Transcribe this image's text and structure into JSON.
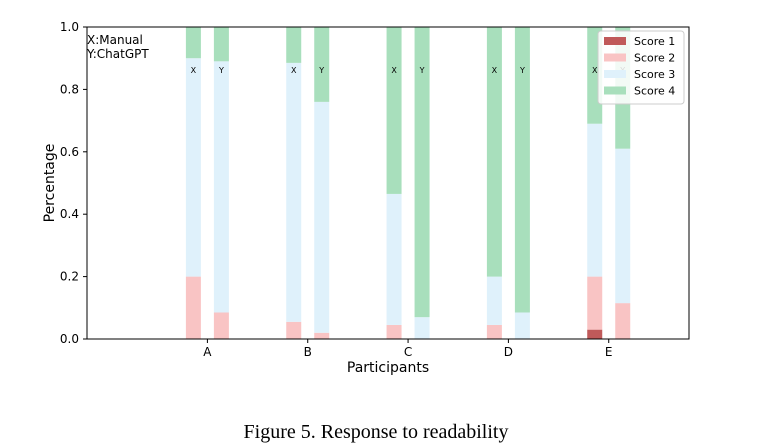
{
  "caption": "Figure 5.  Response to readability",
  "chart_data": {
    "type": "bar",
    "stacked": true,
    "xlabel": "Participants",
    "ylabel": "Percentage",
    "ylim": [
      0,
      1.0
    ],
    "yticks": [
      "0.0",
      "0.2",
      "0.4",
      "0.6",
      "0.8",
      "1.0"
    ],
    "xlim": [
      -1.2,
      4.8
    ],
    "annotation": [
      "X:Manual",
      "Y:ChatGPT"
    ],
    "bar_letters": [
      "X",
      "Y"
    ],
    "legend_position": "top-right",
    "categories": [
      "A",
      "B",
      "C",
      "D",
      "E"
    ],
    "series": [
      {
        "name": "Score 1",
        "color": "#c05a5a",
        "manual": [
          0,
          0,
          0,
          0,
          0.03
        ],
        "chatgpt": [
          0,
          0,
          0,
          0,
          0
        ]
      },
      {
        "name": "Score 2",
        "color": "#f9c4c4",
        "manual": [
          0.2,
          0.055,
          0.045,
          0.045,
          0.17
        ],
        "chatgpt": [
          0.085,
          0.02,
          0,
          0,
          0.115
        ]
      },
      {
        "name": "Score 3",
        "color": "#dff1fb",
        "manual": [
          0.7,
          0.83,
          0.42,
          0.155,
          0.49
        ],
        "chatgpt": [
          0.805,
          0.74,
          0.07,
          0.085,
          0.495
        ]
      },
      {
        "name": "Score 4",
        "color": "#a8dfbc",
        "manual": [
          0.1,
          0.115,
          0.535,
          0.8,
          0.31
        ],
        "chatgpt": [
          0.11,
          0.24,
          0.93,
          0.915,
          0.39
        ]
      }
    ]
  }
}
